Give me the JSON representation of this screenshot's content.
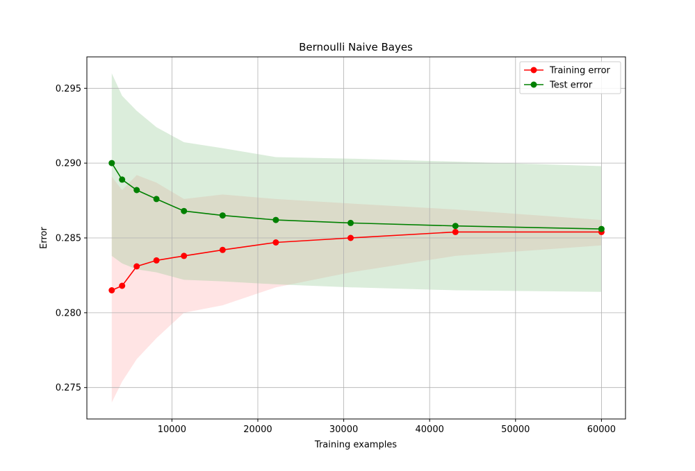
{
  "chart_data": {
    "type": "line",
    "title": "Bernoulli Naive Bayes",
    "xlabel": "Training examples",
    "ylabel": "Error",
    "xlim": [
      100,
      62800
    ],
    "ylim": [
      0.2729,
      0.2971
    ],
    "x_ticks": [
      10000,
      20000,
      30000,
      40000,
      50000,
      60000
    ],
    "x_tick_labels": [
      "10000",
      "20000",
      "30000",
      "40000",
      "50000",
      "60000"
    ],
    "y_ticks": [
      0.275,
      0.28,
      0.285,
      0.29,
      0.295
    ],
    "y_tick_labels": [
      "0.275",
      "0.280",
      "0.285",
      "0.290",
      "0.295"
    ],
    "grid": true,
    "legend_position": "top-right",
    "x": [
      3000,
      4200,
      5900,
      8200,
      11400,
      15900,
      22100,
      30800,
      43000,
      60000
    ],
    "series": [
      {
        "name": "Training error",
        "color": "#ff0000",
        "band_color": "#ffb3b3",
        "values": [
          0.2815,
          0.2818,
          0.2831,
          0.2835,
          0.2838,
          0.2842,
          0.2847,
          0.285,
          0.2854,
          0.2854
        ],
        "lower": [
          0.274,
          0.2754,
          0.2769,
          0.2783,
          0.28,
          0.2805,
          0.2817,
          0.2827,
          0.2838,
          0.2845
        ],
        "upper": [
          0.2891,
          0.2882,
          0.2892,
          0.2887,
          0.2876,
          0.2879,
          0.2876,
          0.2873,
          0.2869,
          0.2862
        ]
      },
      {
        "name": "Test error",
        "color": "#008000",
        "band_color": "#99cc99",
        "values": [
          0.29,
          0.2889,
          0.2882,
          0.2876,
          0.2868,
          0.2865,
          0.2862,
          0.286,
          0.2858,
          0.2856
        ],
        "lower": [
          0.2838,
          0.2833,
          0.2829,
          0.2827,
          0.2822,
          0.2821,
          0.2819,
          0.2817,
          0.2815,
          0.2814
        ],
        "upper": [
          0.296,
          0.2945,
          0.2935,
          0.2924,
          0.2914,
          0.291,
          0.2904,
          0.2903,
          0.2901,
          0.2898
        ]
      }
    ]
  }
}
